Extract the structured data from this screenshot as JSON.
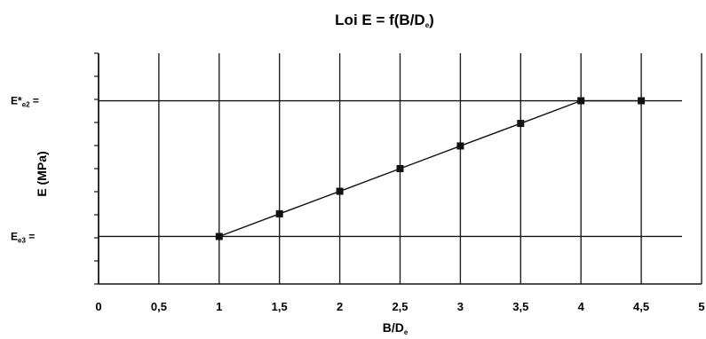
{
  "chart_data": {
    "type": "line",
    "title": "Loi E = f(B/D",
    "title_sub": "e",
    "title_close": ")",
    "xlabel": "B/D",
    "xlabel_sub": "e",
    "ylabel": "E (MPa)",
    "xlim": [
      0,
      5
    ],
    "xticks": [
      "0",
      "0,5",
      "1",
      "1,5",
      "2",
      "2,5",
      "3",
      "3,5",
      "4",
      "4,5",
      "5"
    ],
    "ylim": [
      -0.35,
      1.35
    ],
    "grid": true,
    "series": [
      {
        "x": [
          1,
          1.5,
          2,
          2.5,
          3,
          3.5,
          4,
          4.5
        ],
        "y": [
          0,
          0.167,
          0.333,
          0.5,
          0.667,
          0.833,
          1,
          1
        ],
        "color": "#111111"
      }
    ],
    "reference_lines": [
      {
        "label": "E*",
        "label_sub": "e2",
        "label_suffix": " =",
        "y": 1
      },
      {
        "label": "E",
        "label_sub": "e3",
        "label_suffix": " =",
        "y": 0
      }
    ]
  }
}
